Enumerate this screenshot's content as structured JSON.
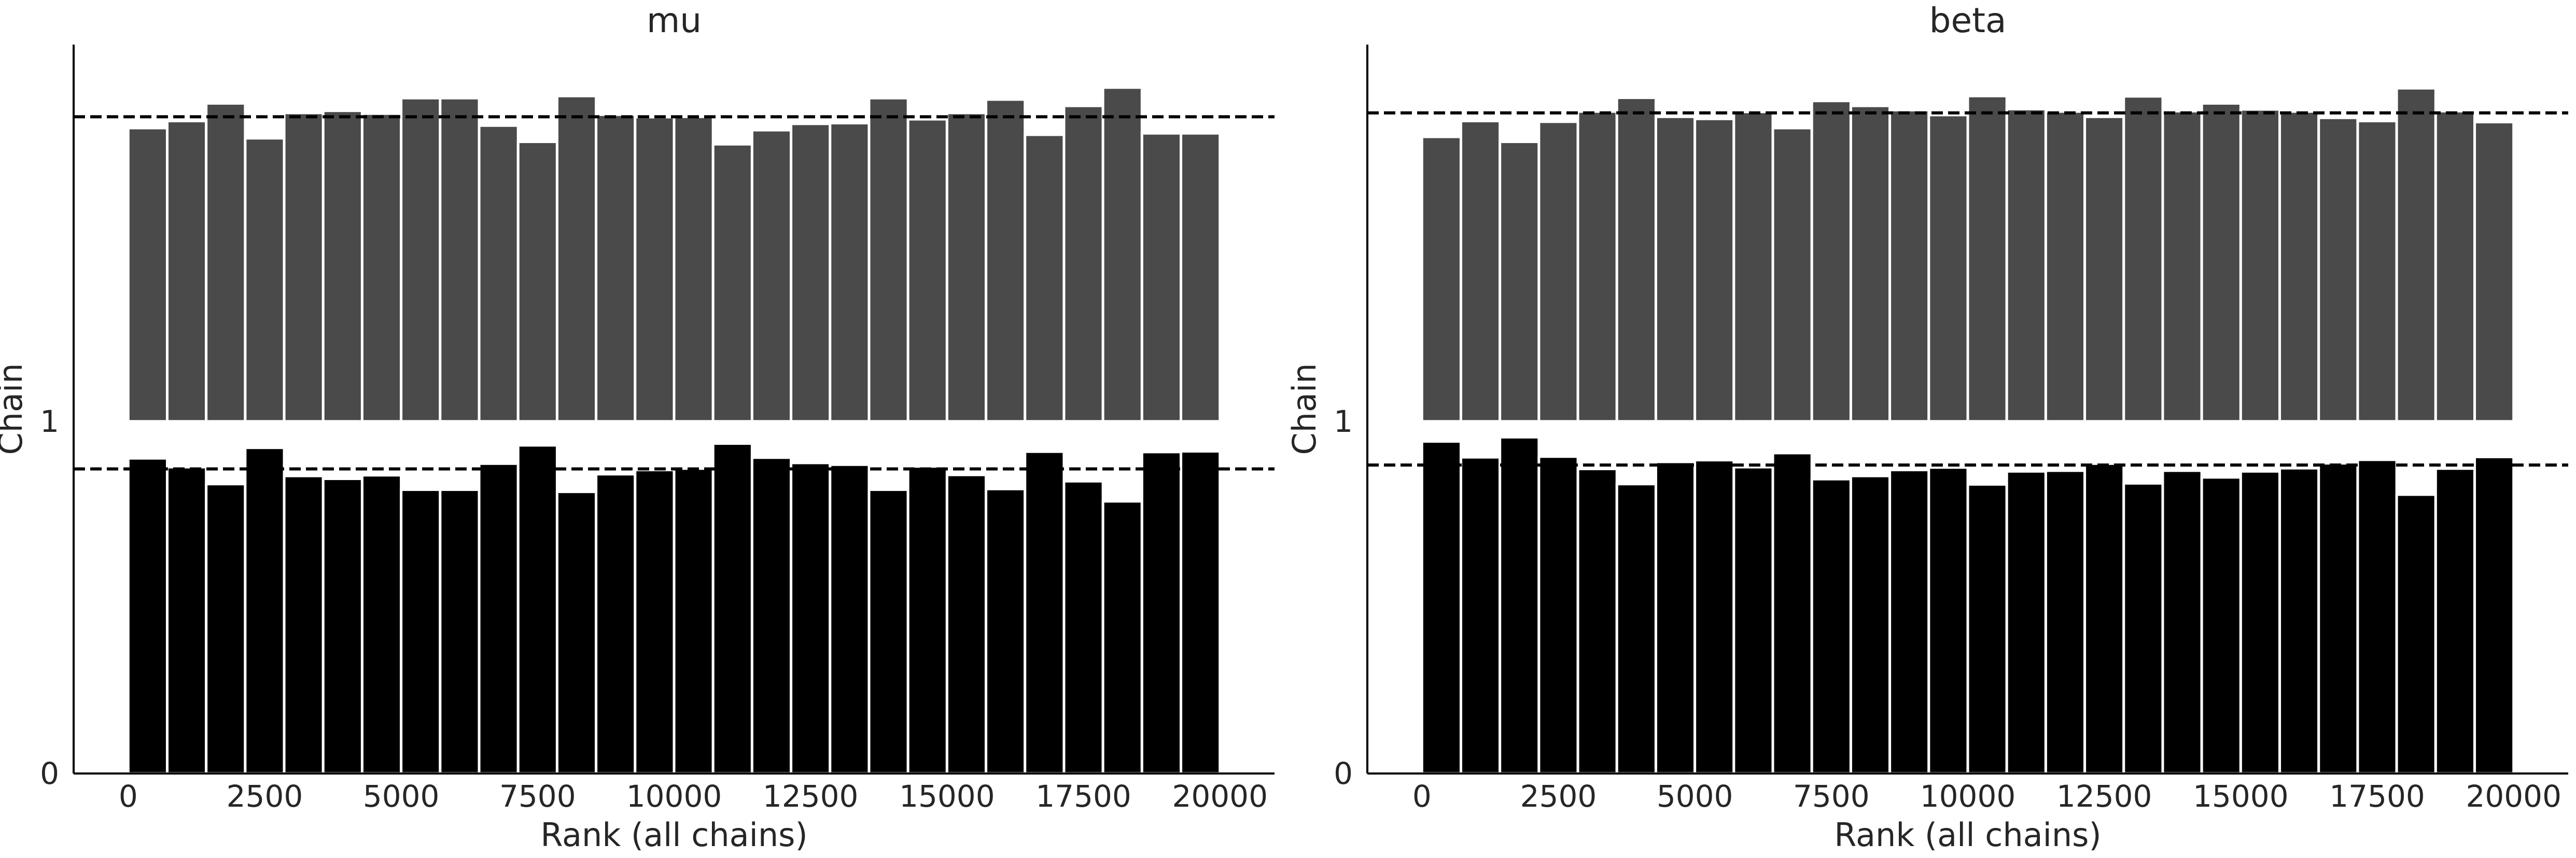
{
  "chart_data": [
    {
      "type": "bar",
      "title": "mu",
      "xlabel": "Rank (all chains)",
      "ylabel": "Chain",
      "xlim": [
        -1000,
        21000
      ],
      "ylim": [
        0,
        2.07
      ],
      "xticks": [
        0,
        2500,
        5000,
        7500,
        10000,
        12500,
        15000,
        17500,
        20000
      ],
      "yticks": [
        0,
        1
      ],
      "grid": false,
      "bin_width": 714.3,
      "bin_starts": [
        0,
        714.3,
        1428.6,
        2142.9,
        2857.1,
        3571.4,
        4285.7,
        5000,
        5714.3,
        6428.6,
        7142.9,
        7857.1,
        8571.4,
        9285.7,
        10000,
        10714.3,
        11428.6,
        12142.9,
        12857.1,
        13571.4,
        14285.7,
        15000,
        15714.3,
        16428.6,
        17142.9,
        17857.1,
        18571.4,
        19285.7
      ],
      "series": [
        {
          "chain": 0,
          "color": "#000000",
          "offset": 0,
          "reference_level": 0.865,
          "heights": [
            0.895,
            0.87,
            0.822,
            0.925,
            0.845,
            0.837,
            0.847,
            0.806,
            0.806,
            0.88,
            0.932,
            0.8,
            0.85,
            0.862,
            0.866,
            0.937,
            0.897,
            0.882,
            0.877,
            0.806,
            0.872,
            0.848,
            0.808,
            0.914,
            0.83,
            0.773,
            0.913,
            0.915
          ]
        },
        {
          "chain": 1,
          "color": "#4a4a4a",
          "offset": 1,
          "reference_level": 0.865,
          "heights": [
            0.833,
            0.853,
            0.903,
            0.804,
            0.876,
            0.882,
            0.874,
            0.918,
            0.918,
            0.84,
            0.794,
            0.924,
            0.871,
            0.864,
            0.865,
            0.787,
            0.827,
            0.845,
            0.847,
            0.918,
            0.858,
            0.876,
            0.914,
            0.814,
            0.896,
            0.948,
            0.818,
            0.818
          ]
        }
      ]
    },
    {
      "type": "bar",
      "title": "beta",
      "xlabel": "Rank (all chains)",
      "ylabel": "Chain",
      "xlim": [
        -1000,
        21000
      ],
      "ylim": [
        0,
        2.07
      ],
      "xticks": [
        0,
        2500,
        5000,
        7500,
        10000,
        12500,
        15000,
        17500,
        20000
      ],
      "yticks": [
        0,
        1
      ],
      "grid": false,
      "bin_width": 714.3,
      "bin_starts": [
        0,
        714.3,
        1428.6,
        2142.9,
        2857.1,
        3571.4,
        4285.7,
        5000,
        5714.3,
        6428.6,
        7142.9,
        7857.1,
        8571.4,
        9285.7,
        10000,
        10714.3,
        11428.6,
        12142.9,
        12857.1,
        13571.4,
        14285.7,
        15000,
        15714.3,
        16428.6,
        17142.9,
        17857.1,
        18571.4,
        19285.7
      ],
      "series": [
        {
          "chain": 0,
          "color": "#000000",
          "offset": 0,
          "reference_level": 0.876,
          "heights": [
            0.943,
            0.898,
            0.955,
            0.9,
            0.865,
            0.822,
            0.885,
            0.89,
            0.87,
            0.91,
            0.836,
            0.845,
            0.862,
            0.869,
            0.821,
            0.858,
            0.86,
            0.88,
            0.824,
            0.86,
            0.841,
            0.858,
            0.867,
            0.881,
            0.891,
            0.792,
            0.866,
            0.899
          ]
        },
        {
          "chain": 1,
          "color": "#4a4a4a",
          "offset": 1,
          "reference_level": 0.876,
          "heights": [
            0.808,
            0.853,
            0.794,
            0.851,
            0.88,
            0.919,
            0.865,
            0.859,
            0.879,
            0.833,
            0.91,
            0.896,
            0.884,
            0.87,
            0.924,
            0.887,
            0.88,
            0.865,
            0.923,
            0.881,
            0.903,
            0.886,
            0.88,
            0.862,
            0.853,
            0.946,
            0.881,
            0.85
          ]
        }
      ]
    }
  ]
}
